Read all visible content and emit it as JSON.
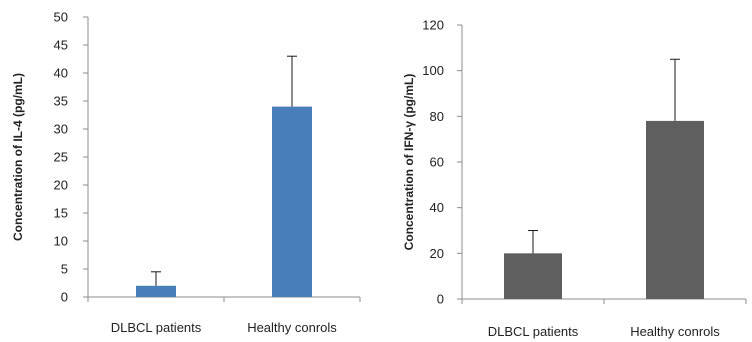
{
  "chart_data": [
    {
      "type": "bar",
      "title": "",
      "xlabel": "",
      "ylabel": "Concentration of IL-4 (pg/mL)",
      "categories": [
        "DLBCL patients",
        "Healthy conrols"
      ],
      "values": [
        2,
        34
      ],
      "errors": [
        2.5,
        9
      ],
      "ylim": [
        0,
        50
      ],
      "yticks": [
        0,
        5,
        10,
        15,
        20,
        25,
        30,
        35,
        40,
        45,
        50
      ],
      "bar_color": "#4a7ebb",
      "grid": false,
      "legend": "none"
    },
    {
      "type": "bar",
      "title": "",
      "xlabel": "",
      "ylabel": "Concentration of IFN-γ (pg/mL)",
      "categories": [
        "DLBCL patients",
        "Healthy conrols"
      ],
      "values": [
        20,
        78
      ],
      "errors": [
        10,
        27
      ],
      "ylim": [
        0,
        120
      ],
      "yticks": [
        0,
        20,
        40,
        60,
        80,
        100,
        120
      ],
      "bar_color": "#5f5f5f",
      "grid": false,
      "legend": "none"
    }
  ]
}
